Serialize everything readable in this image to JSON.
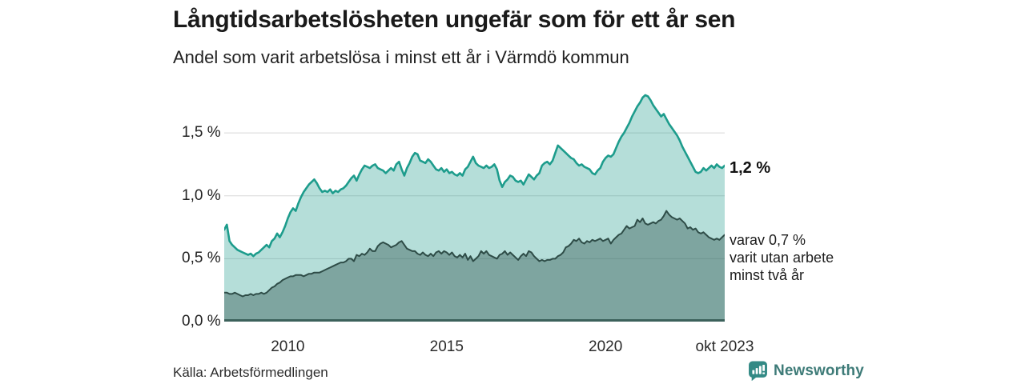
{
  "header": {
    "title": "Långtidsarbetslösheten ungefär som för ett år sen",
    "subtitle": "Andel som varit arbetslösa i minst ett år i Värmdö kommun"
  },
  "chart_data": {
    "type": "area",
    "frequency": "monthly",
    "x_range": [
      "2008-01",
      "2023-10"
    ],
    "unit": "%",
    "grid": true,
    "ylim": [
      0,
      1.92
    ],
    "y_ticks": [
      {
        "value": 0.0,
        "label": "0,0 %"
      },
      {
        "value": 0.5,
        "label": "0,5 %"
      },
      {
        "value": 1.0,
        "label": "1,0 %"
      },
      {
        "value": 1.5,
        "label": "1,5 %"
      }
    ],
    "x_ticks": [
      {
        "month_index": 24,
        "label": "2010"
      },
      {
        "month_index": 84,
        "label": "2015"
      },
      {
        "month_index": 144,
        "label": "2020"
      },
      {
        "month_index": 189,
        "label": "okt 2023"
      }
    ],
    "colors": {
      "accent_teal": "#1d9c8c",
      "dark_teal": "#2e4c47",
      "baseline": "#3c615b",
      "gridline": "#d8d8d8"
    },
    "series": [
      {
        "name": "Andel arbetslösa minst ett år",
        "end_value": 1.2,
        "end_label": "1,2 %",
        "line_color": "#1d9c8c",
        "line_width": 2.6,
        "fill_color": "rgba(29,156,140,0.33)",
        "values": [
          0.73,
          0.77,
          0.64,
          0.61,
          0.59,
          0.57,
          0.56,
          0.55,
          0.54,
          0.53,
          0.54,
          0.52,
          0.54,
          0.55,
          0.57,
          0.59,
          0.61,
          0.59,
          0.64,
          0.66,
          0.7,
          0.67,
          0.71,
          0.76,
          0.82,
          0.87,
          0.9,
          0.88,
          0.94,
          0.99,
          1.03,
          1.06,
          1.09,
          1.11,
          1.13,
          1.1,
          1.06,
          1.03,
          1.04,
          1.03,
          1.05,
          1.02,
          1.04,
          1.03,
          1.05,
          1.06,
          1.08,
          1.11,
          1.14,
          1.16,
          1.12,
          1.17,
          1.21,
          1.24,
          1.23,
          1.22,
          1.24,
          1.25,
          1.22,
          1.21,
          1.2,
          1.18,
          1.2,
          1.22,
          1.2,
          1.25,
          1.27,
          1.21,
          1.16,
          1.22,
          1.26,
          1.31,
          1.34,
          1.33,
          1.28,
          1.27,
          1.26,
          1.29,
          1.27,
          1.24,
          1.21,
          1.2,
          1.22,
          1.19,
          1.21,
          1.18,
          1.19,
          1.17,
          1.16,
          1.18,
          1.16,
          1.21,
          1.23,
          1.27,
          1.31,
          1.26,
          1.24,
          1.23,
          1.22,
          1.24,
          1.22,
          1.23,
          1.25,
          1.21,
          1.12,
          1.07,
          1.11,
          1.13,
          1.16,
          1.15,
          1.12,
          1.11,
          1.12,
          1.09,
          1.13,
          1.17,
          1.15,
          1.13,
          1.16,
          1.18,
          1.24,
          1.26,
          1.27,
          1.25,
          1.28,
          1.34,
          1.4,
          1.38,
          1.36,
          1.34,
          1.32,
          1.3,
          1.29,
          1.26,
          1.24,
          1.25,
          1.23,
          1.22,
          1.21,
          1.18,
          1.17,
          1.2,
          1.22,
          1.27,
          1.3,
          1.32,
          1.31,
          1.33,
          1.38,
          1.43,
          1.47,
          1.5,
          1.54,
          1.58,
          1.63,
          1.67,
          1.71,
          1.74,
          1.78,
          1.8,
          1.79,
          1.76,
          1.72,
          1.69,
          1.66,
          1.63,
          1.65,
          1.61,
          1.57,
          1.54,
          1.51,
          1.48,
          1.44,
          1.39,
          1.35,
          1.31,
          1.27,
          1.23,
          1.19,
          1.18,
          1.19,
          1.22,
          1.2,
          1.22,
          1.24,
          1.22,
          1.25,
          1.23,
          1.22,
          1.24
        ]
      },
      {
        "name": "varav utan arbete minst två år",
        "end_value": 0.7,
        "end_label": "varav 0,7 %\nvarit utan arbete\nminst två år",
        "line_color": "#2e4c47",
        "line_width": 2,
        "fill_color": "rgba(38,74,69,0.38)",
        "values": [
          0.23,
          0.23,
          0.22,
          0.22,
          0.23,
          0.22,
          0.21,
          0.2,
          0.21,
          0.21,
          0.22,
          0.21,
          0.22,
          0.22,
          0.23,
          0.22,
          0.23,
          0.25,
          0.27,
          0.28,
          0.3,
          0.31,
          0.33,
          0.34,
          0.35,
          0.36,
          0.36,
          0.37,
          0.37,
          0.37,
          0.36,
          0.37,
          0.38,
          0.38,
          0.39,
          0.39,
          0.39,
          0.4,
          0.41,
          0.42,
          0.43,
          0.44,
          0.45,
          0.46,
          0.47,
          0.47,
          0.48,
          0.5,
          0.5,
          0.48,
          0.53,
          0.52,
          0.54,
          0.53,
          0.55,
          0.58,
          0.56,
          0.56,
          0.6,
          0.62,
          0.63,
          0.62,
          0.61,
          0.59,
          0.6,
          0.61,
          0.63,
          0.64,
          0.61,
          0.58,
          0.57,
          0.56,
          0.56,
          0.54,
          0.53,
          0.55,
          0.53,
          0.52,
          0.54,
          0.52,
          0.55,
          0.56,
          0.54,
          0.56,
          0.55,
          0.53,
          0.55,
          0.52,
          0.51,
          0.53,
          0.51,
          0.54,
          0.49,
          0.52,
          0.48,
          0.5,
          0.52,
          0.56,
          0.54,
          0.56,
          0.53,
          0.52,
          0.51,
          0.5,
          0.53,
          0.54,
          0.56,
          0.53,
          0.55,
          0.53,
          0.51,
          0.49,
          0.52,
          0.54,
          0.52,
          0.56,
          0.55,
          0.52,
          0.5,
          0.48,
          0.49,
          0.48,
          0.49,
          0.49,
          0.5,
          0.5,
          0.52,
          0.53,
          0.55,
          0.59,
          0.6,
          0.62,
          0.65,
          0.64,
          0.66,
          0.63,
          0.62,
          0.64,
          0.63,
          0.65,
          0.64,
          0.65,
          0.66,
          0.64,
          0.65,
          0.66,
          0.62,
          0.65,
          0.67,
          0.69,
          0.7,
          0.73,
          0.76,
          0.74,
          0.75,
          0.76,
          0.81,
          0.79,
          0.82,
          0.78,
          0.77,
          0.78,
          0.79,
          0.78,
          0.8,
          0.81,
          0.84,
          0.88,
          0.85,
          0.83,
          0.82,
          0.81,
          0.82,
          0.8,
          0.78,
          0.74,
          0.75,
          0.73,
          0.74,
          0.71,
          0.7,
          0.71,
          0.69,
          0.67,
          0.66,
          0.65,
          0.66,
          0.65,
          0.67,
          0.69
        ]
      }
    ]
  },
  "footer": {
    "source": "Källa: Arbetsförmedlingen",
    "brand": "Newsworthy"
  }
}
